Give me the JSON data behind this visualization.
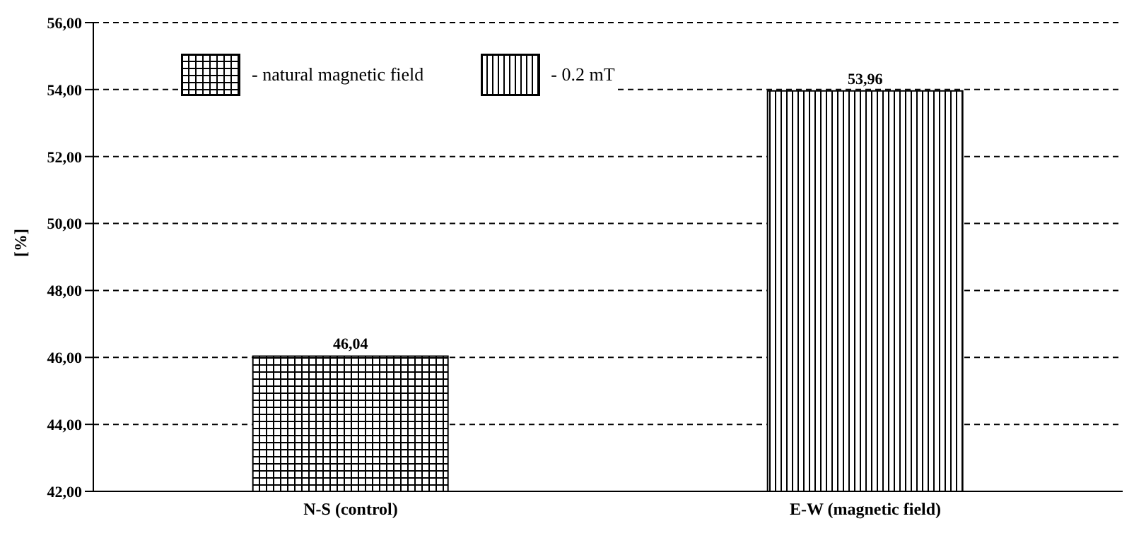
{
  "chart_data": {
    "type": "bar",
    "ylabel": "[%]",
    "categories": [
      "N-S (control)",
      "E-W (magnetic field)"
    ],
    "series": [
      {
        "name": "- natural magnetic field",
        "color": "#000000",
        "values": [
          46.04,
          null
        ],
        "value_labels": [
          "46,04",
          null
        ]
      },
      {
        "name": "- 0.2 mT",
        "color": "#000000",
        "values": [
          null,
          53.96
        ],
        "value_labels": [
          null,
          "53,96"
        ]
      }
    ],
    "ylim": [
      42,
      56
    ],
    "yticks": [
      {
        "value": 42,
        "label": "42,00"
      },
      {
        "value": 44,
        "label": "44,00"
      },
      {
        "value": 46,
        "label": "46,00"
      },
      {
        "value": 48,
        "label": "48,00"
      },
      {
        "value": 50,
        "label": "50,00"
      },
      {
        "value": 52,
        "label": "52,00"
      },
      {
        "value": 54,
        "label": "54,00"
      },
      {
        "value": 56,
        "label": "56,00"
      }
    ],
    "grid": "y",
    "legend": "top left"
  }
}
